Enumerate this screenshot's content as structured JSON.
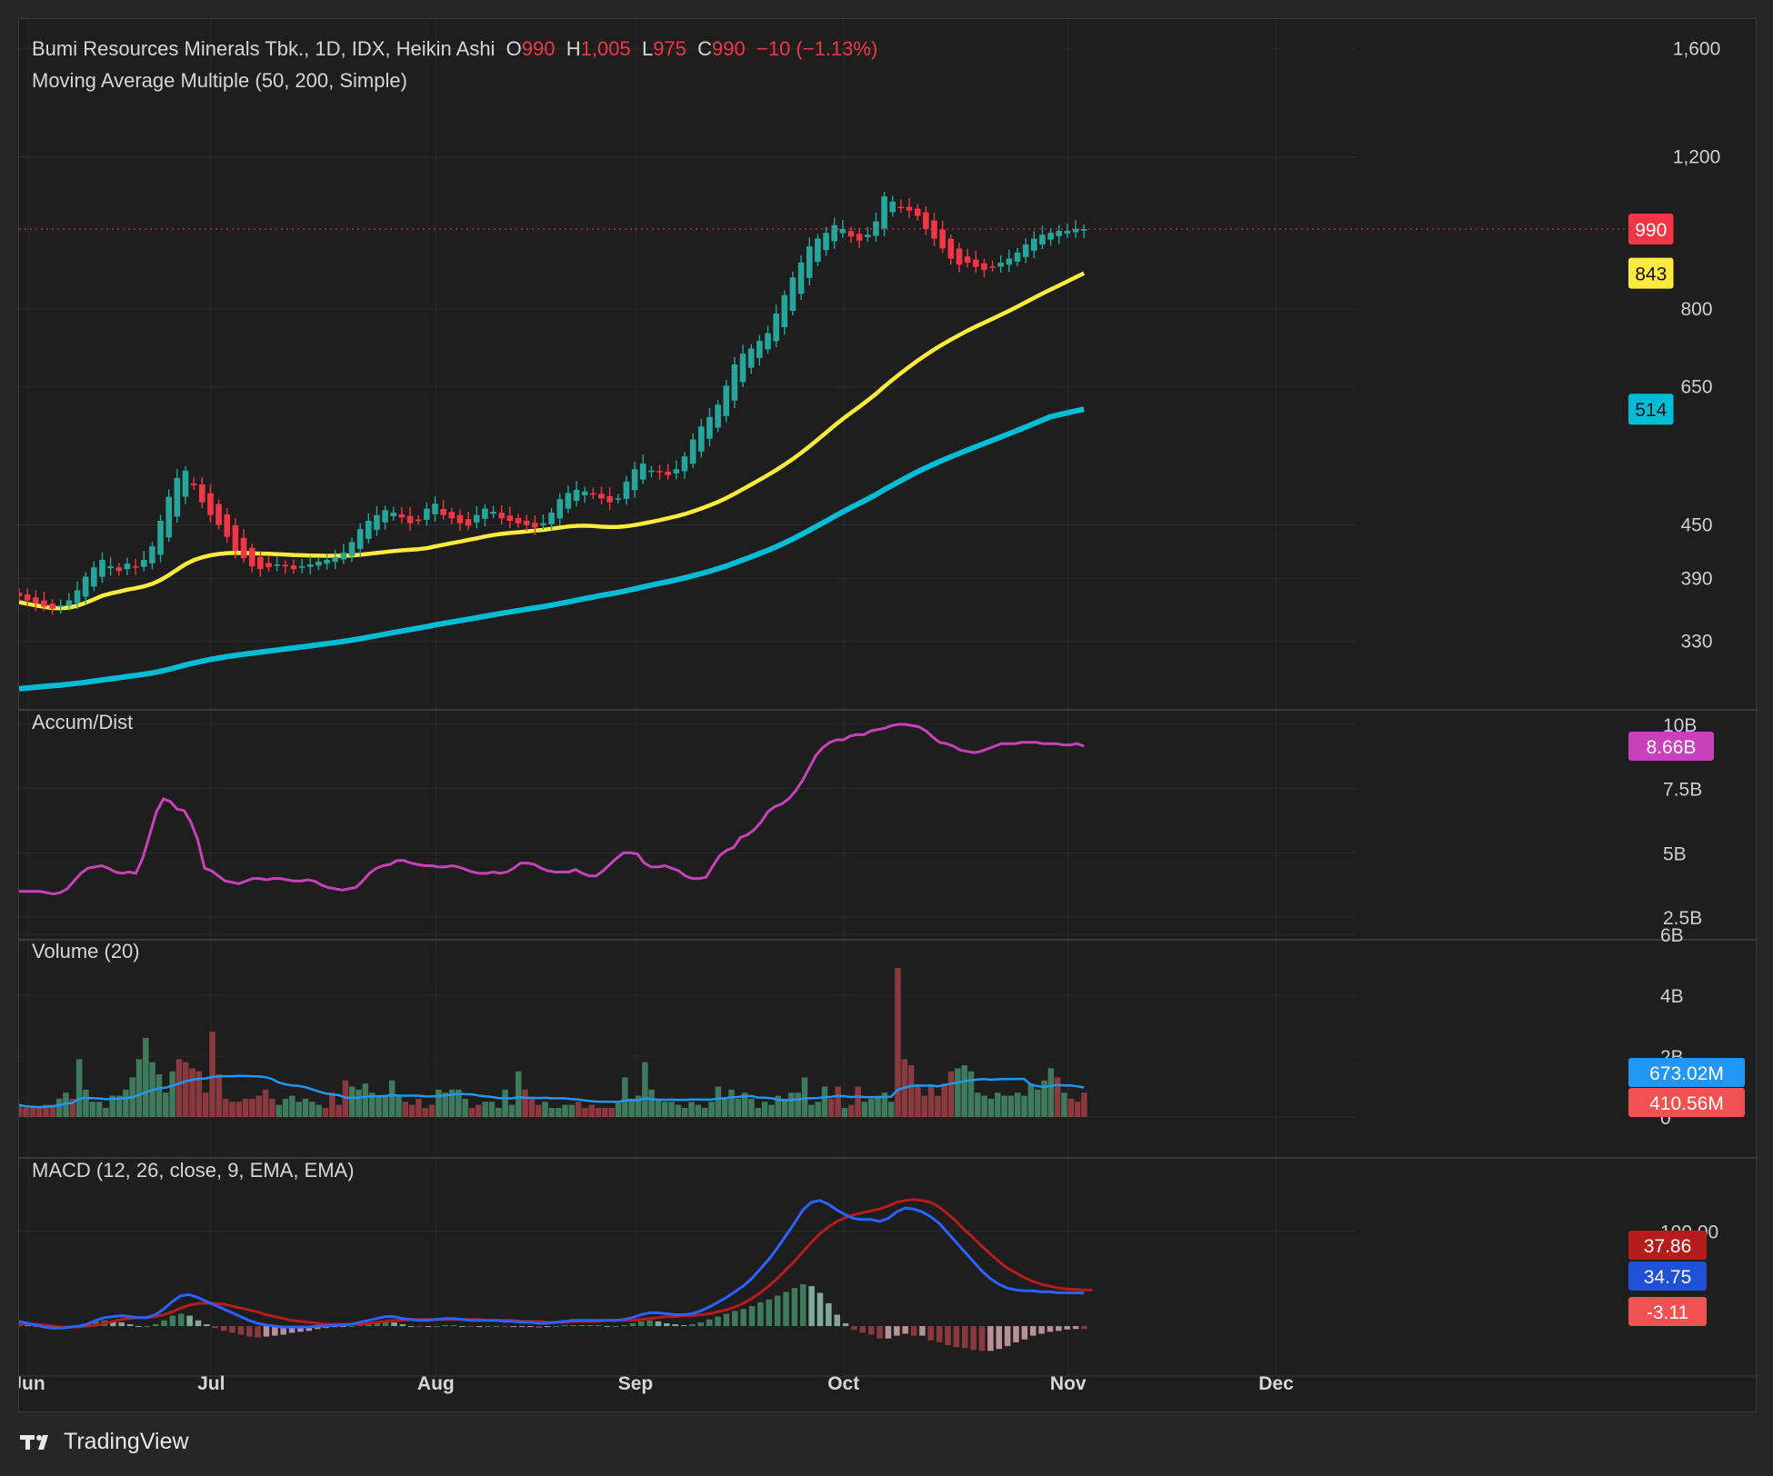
{
  "header": {
    "symbol": "Bumi Resources Minerals Tbk., 1D, IDX, Heikin Ashi",
    "o_label": "O",
    "o_value": "990",
    "h_label": "H",
    "h_value": "1,005",
    "l_label": "L",
    "l_value": "975",
    "c_label": "C",
    "c_value": "990",
    "change": "−10 (−1.13%)",
    "ma_title": "Moving Average Multiple (50, 200, Simple)"
  },
  "brand": {
    "name": "TradingView"
  },
  "colors": {
    "up": "#26a69a",
    "down": "#f23645",
    "ma50": "#ffeb3b",
    "ma200": "#00bcd4",
    "ad": "#c941b8",
    "vol_ma": "#2196f3",
    "macd": "#2962ff",
    "signal": "#b71c1c"
  },
  "chart_data": [
    {
      "type": "candlestick",
      "name": "price",
      "scale": "log",
      "ylim": [
        290,
        1650
      ],
      "y_ticks": [
        "1,600",
        "1,200",
        "800",
        "650",
        "450",
        "390",
        "330"
      ],
      "x_ticks": [
        "Jun",
        "Jul",
        "Aug",
        "Sep",
        "Oct",
        "Nov",
        "Dec"
      ],
      "month_starts": {
        "Jun": 0,
        "Jul": 22,
        "Aug": 49,
        "Sep": 73,
        "Oct": 98,
        "Nov": 125,
        "Dec": 150
      },
      "closes": [
        372,
        368,
        365,
        362,
        360,
        363,
        368,
        378,
        392,
        402,
        410,
        403,
        398,
        406,
        402,
        410,
        425,
        455,
        485,
        510,
        520,
        500,
        478,
        462,
        450,
        436,
        420,
        412,
        403,
        400,
        402,
        405,
        403,
        400,
        403,
        405,
        408,
        410,
        413,
        418,
        430,
        445,
        455,
        462,
        468,
        465,
        459,
        452,
        456,
        470,
        476,
        462,
        458,
        452,
        449,
        462,
        470,
        466,
        458,
        455,
        452,
        450,
        447,
        452,
        465,
        482,
        490,
        494,
        492,
        488,
        483,
        478,
        483,
        505,
        522,
        530,
        520,
        518,
        514,
        522,
        540,
        565,
        585,
        600,
        620,
        652,
        690,
        710,
        720,
        735,
        750,
        790,
        830,
        870,
        905,
        945,
        965,
        980,
        1000,
        990,
        970,
        960,
        975,
        1010,
        1080,
        1065,
        1050,
        1040,
        1025,
        990,
        965,
        940,
        915,
        900,
        905,
        895,
        888,
        895,
        905,
        915,
        930,
        950,
        965,
        975,
        980,
        985,
        985,
        990,
        990
      ],
      "current_price_label": "990",
      "ma50_label": "843",
      "ma200_label": "514"
    },
    {
      "type": "line",
      "name": "Accum/Dist",
      "ylim": [
        2.5,
        10
      ],
      "y_ticks": [
        "10B",
        "7.5B",
        "5B",
        "2.5B"
      ],
      "values": [
        3.5,
        3.5,
        3.5,
        3.5,
        3.45,
        3.4,
        3.45,
        3.6,
        3.9,
        4.2,
        4.4,
        4.45,
        4.5,
        4.4,
        4.25,
        4.2,
        4.25,
        4.2,
        4.8,
        5.7,
        6.6,
        7.1,
        7.0,
        6.7,
        6.65,
        6.2,
        5.5,
        4.4,
        4.3,
        4.1,
        3.9,
        3.85,
        3.8,
        3.9,
        4.0,
        4.0,
        3.95,
        4.0,
        4.0,
        3.95,
        3.9,
        3.9,
        3.95,
        3.9,
        3.75,
        3.65,
        3.6,
        3.55,
        3.6,
        3.65,
        3.9,
        4.2,
        4.4,
        4.5,
        4.55,
        4.7,
        4.7,
        4.6,
        4.55,
        4.5,
        4.5,
        4.45,
        4.45,
        4.5,
        4.45,
        4.35,
        4.25,
        4.2,
        4.2,
        4.25,
        4.2,
        4.25,
        4.4,
        4.6,
        4.6,
        4.55,
        4.4,
        4.3,
        4.25,
        4.25,
        4.25,
        4.35,
        4.2,
        4.1,
        4.1,
        4.3,
        4.55,
        4.8,
        5.0,
        5.0,
        4.95,
        4.6,
        4.45,
        4.45,
        4.5,
        4.4,
        4.3,
        4.1,
        4.0,
        4.0,
        4.05,
        4.5,
        4.9,
        5.1,
        5.2,
        5.6,
        5.7,
        5.9,
        6.2,
        6.6,
        6.8,
        6.9,
        7.1,
        7.4,
        7.8,
        8.3,
        8.8,
        9.1,
        9.3,
        9.4,
        9.4,
        9.55,
        9.6,
        9.6,
        9.75,
        9.8,
        9.85,
        9.95,
        10.0,
        10.0,
        9.95,
        9.9,
        9.75,
        9.5,
        9.3,
        9.25,
        9.15,
        9.0,
        8.95,
        8.9,
        8.95,
        9.05,
        9.15,
        9.25,
        9.25,
        9.25,
        9.3,
        9.3,
        9.3,
        9.25,
        9.25,
        9.25,
        9.2,
        9.2,
        9.25,
        9.15
      ]
    },
    {
      "type": "bar",
      "name": "Volume (20)",
      "ylim": [
        0,
        6
      ],
      "y_ticks": [
        "6B",
        "4B",
        "2B",
        "0"
      ],
      "volume_label": "410.56M",
      "vol_ma_label": "673.02M",
      "values": [
        0.4,
        0.3,
        0.3,
        0.3,
        0.4,
        0.4,
        0.6,
        0.8,
        0.6,
        1.9,
        0.9,
        0.5,
        0.5,
        0.3,
        0.7,
        0.7,
        0.9,
        1.3,
        1.9,
        2.6,
        1.8,
        1.4,
        0.8,
        1.5,
        1.9,
        1.8,
        1.6,
        1.5,
        0.8,
        2.8,
        1.4,
        0.6,
        0.5,
        0.5,
        0.6,
        0.6,
        0.7,
        0.9,
        0.6,
        0.4,
        0.6,
        0.7,
        0.5,
        0.6,
        0.5,
        0.4,
        0.3,
        0.8,
        0.4,
        1.2,
        1.0,
        0.9,
        1.1,
        0.8,
        0.7,
        0.7,
        1.2,
        0.7,
        0.5,
        0.4,
        0.6,
        0.3,
        0.4,
        0.9,
        0.8,
        0.9,
        0.9,
        0.6,
        0.3,
        0.4,
        0.5,
        0.5,
        0.3,
        0.9,
        0.4,
        1.5,
        0.9,
        0.6,
        0.4,
        0.5,
        0.3,
        0.3,
        0.4,
        0.4,
        0.5,
        0.3,
        0.4,
        0.3,
        0.3,
        0.3,
        0.5,
        1.3,
        0.6,
        0.7,
        1.8,
        0.9,
        0.6,
        0.5,
        0.5,
        0.4,
        0.3,
        0.5,
        0.4,
        0.3,
        0.5,
        1.0,
        0.6,
        0.9,
        0.6,
        0.8,
        0.6,
        0.3,
        0.5,
        0.4,
        0.7,
        0.6,
        0.8,
        0.8,
        1.3,
        0.4,
        0.5,
        1.0,
        0.6,
        1.0,
        0.3,
        0.4,
        1.0,
        0.5,
        0.6,
        0.7,
        0.8,
        0.5,
        4.9,
        1.9,
        1.7,
        1.0,
        0.7,
        1.0,
        0.7,
        1.1,
        1.5,
        1.6,
        1.7,
        1.5,
        0.8,
        0.7,
        0.6,
        0.8,
        0.7,
        0.7,
        0.8,
        0.7,
        1.1,
        0.9,
        1.2,
        1.6,
        1.3,
        0.8,
        0.6,
        0.5,
        0.8
      ],
      "up": [
        0,
        0,
        0,
        0,
        0,
        0,
        1,
        1,
        0,
        1,
        1,
        1,
        1,
        1,
        1,
        1,
        1,
        1,
        1,
        1,
        1,
        1,
        1,
        1,
        0,
        0,
        0,
        0,
        0,
        0,
        0,
        0,
        0,
        0,
        0,
        0,
        0,
        0,
        0,
        1,
        1,
        1,
        1,
        1,
        1,
        1,
        0,
        0,
        0,
        0,
        1,
        1,
        1,
        1,
        1,
        1,
        1,
        1,
        0,
        0,
        0,
        0,
        0,
        1,
        1,
        1,
        1,
        1,
        0,
        0,
        1,
        1,
        1,
        1,
        1,
        1,
        0,
        0,
        0,
        1,
        1,
        1,
        1,
        1,
        0,
        0,
        0,
        0,
        0,
        0,
        1,
        1,
        1,
        1,
        1,
        1,
        1,
        1,
        1,
        1,
        1,
        1,
        1,
        1,
        1,
        1,
        1,
        1,
        1,
        1,
        1,
        1,
        1,
        1,
        1,
        1,
        1,
        1,
        1,
        1,
        1,
        1,
        0,
        0,
        1,
        0,
        0,
        1,
        1,
        1,
        1,
        1,
        0,
        0,
        0,
        0,
        0,
        0,
        0,
        0,
        0,
        1,
        1,
        1,
        1,
        1,
        1,
        1,
        1,
        1,
        1,
        1,
        1,
        1,
        1,
        1,
        0,
        1,
        0
      ]
    },
    {
      "type": "line",
      "name": "MACD (12, 26, close, 9, EMA, EMA)",
      "ylim": [
        -40,
        170
      ],
      "y_ticks": [
        "100.00"
      ],
      "signal_label": "37.86",
      "macd_label": "34.75",
      "hist_label": "-3.11",
      "macd": [
        5,
        3,
        1,
        -1,
        -2,
        -2,
        -1,
        0,
        2,
        6,
        9,
        10,
        11,
        10,
        9,
        9,
        12,
        18,
        26,
        32,
        33,
        30,
        26,
        22,
        18,
        14,
        10,
        6,
        3,
        1,
        0,
        -1,
        -1,
        -1,
        -1,
        0,
        0,
        1,
        1,
        2,
        4,
        6,
        8,
        10,
        10,
        8,
        7,
        6,
        6,
        7,
        8,
        8,
        7,
        6,
        6,
        6,
        6,
        5,
        5,
        4,
        4,
        3,
        3,
        4,
        5,
        6,
        6,
        6,
        6,
        6,
        6,
        7,
        9,
        12,
        14,
        14,
        13,
        12,
        12,
        13,
        16,
        20,
        25,
        30,
        36,
        42,
        50,
        60,
        70,
        82,
        95,
        108,
        122,
        130,
        132,
        128,
        122,
        117,
        113,
        112,
        112,
        110,
        113,
        120,
        124,
        123,
        120,
        115,
        108,
        98,
        88,
        78,
        68,
        58,
        50,
        44,
        40,
        38,
        37,
        37,
        36,
        36,
        35,
        35,
        35,
        34.75
      ],
      "signal": [
        3,
        2,
        2,
        1,
        0,
        -1,
        -1,
        -1,
        0,
        1,
        3,
        5,
        7,
        8,
        9,
        9,
        10,
        12,
        15,
        19,
        22,
        24,
        24,
        24,
        23,
        21,
        19,
        17,
        15,
        12,
        10,
        8,
        6,
        5,
        4,
        3,
        2,
        2,
        2,
        2,
        2,
        3,
        4,
        5,
        6,
        6,
        7,
        7,
        7,
        7,
        7,
        7,
        7,
        7,
        7,
        6,
        6,
        6,
        6,
        5,
        5,
        5,
        4,
        4,
        4,
        5,
        5,
        5,
        5,
        6,
        6,
        6,
        6,
        7,
        8,
        9,
        10,
        10,
        11,
        11,
        12,
        13,
        15,
        17,
        20,
        24,
        29,
        35,
        42,
        50,
        59,
        68,
        78,
        88,
        97,
        104,
        110,
        114,
        117,
        119,
        121,
        123,
        126,
        130,
        132,
        133,
        132,
        130,
        125,
        118,
        110,
        101,
        93,
        84,
        76,
        68,
        61,
        56,
        51,
        47,
        44,
        42,
        40,
        39,
        38.5,
        38,
        37.86
      ],
      "hist": [
        2,
        1,
        -1,
        -2,
        -2,
        -1,
        0,
        1,
        2,
        5,
        6,
        5,
        4,
        2,
        0,
        0,
        2,
        6,
        11,
        13,
        11,
        6,
        2,
        -2,
        -5,
        -7,
        -9,
        -11,
        -12,
        -11,
        -10,
        -9,
        -7,
        -6,
        -5,
        -3,
        -2,
        -1,
        -1,
        0,
        2,
        3,
        4,
        5,
        4,
        2,
        0,
        -1,
        -1,
        0,
        1,
        1,
        0,
        -1,
        -1,
        0,
        0,
        -1,
        -1,
        -1,
        -1,
        -2,
        -1,
        0,
        1,
        1,
        1,
        1,
        1,
        0,
        0,
        1,
        3,
        5,
        6,
        5,
        3,
        2,
        1,
        2,
        4,
        7,
        10,
        13,
        16,
        18,
        21,
        25,
        28,
        32,
        36,
        40,
        44,
        42,
        35,
        24,
        12,
        3,
        -4,
        -7,
        -9,
        -13,
        -13,
        -10,
        -8,
        -10,
        -10,
        -15,
        -17,
        -20,
        -22,
        -23,
        -25,
        -26,
        -26,
        -24,
        -21,
        -17,
        -14,
        -10,
        -8,
        -6,
        -5,
        -3.5,
        -3,
        -3.11
      ]
    }
  ]
}
